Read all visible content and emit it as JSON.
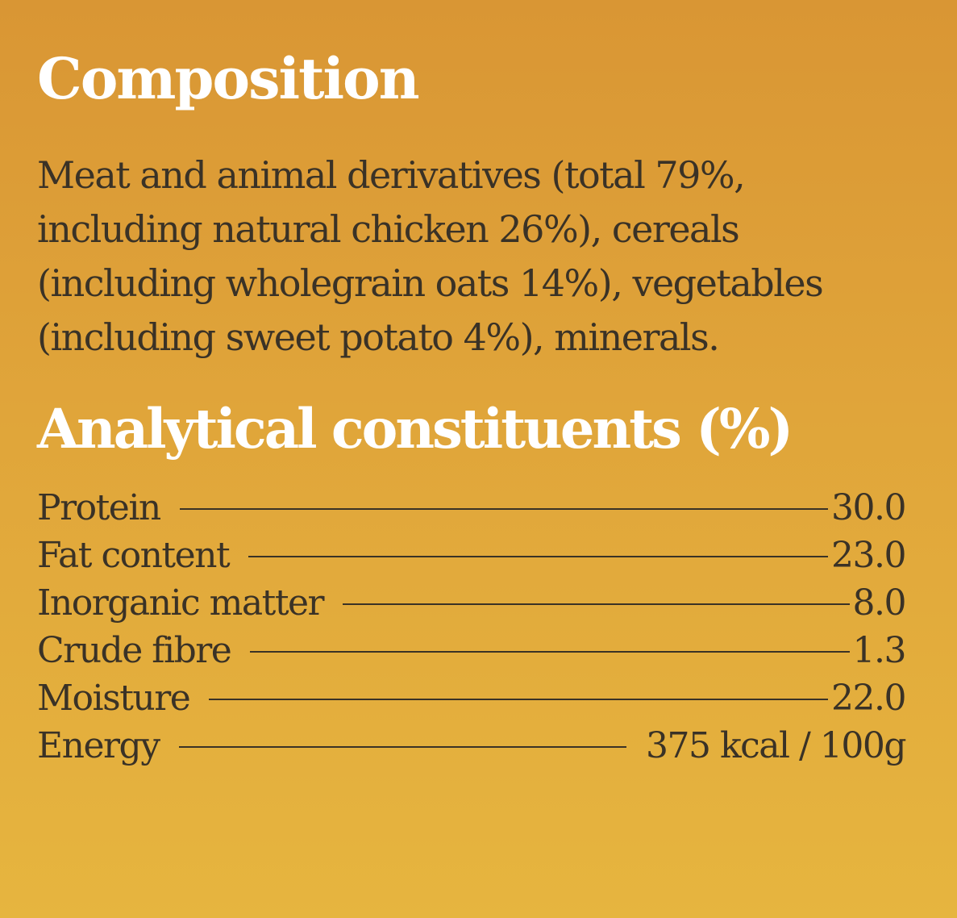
{
  "composition": {
    "heading": "Composition",
    "text": "Meat and animal derivatives (total 79%, including natural chicken 26%), cereals (including wholegrain oats 14%), vegetables (including sweet potato 4%), minerals."
  },
  "analytical": {
    "heading": "Analytical constituents (%)",
    "rows": [
      {
        "label": "Protein",
        "value": "30.0"
      },
      {
        "label": "Fat content",
        "value": "23.0"
      },
      {
        "label": "Inorganic matter",
        "value": "8.0"
      },
      {
        "label": "Crude fibre",
        "value": "1.3"
      },
      {
        "label": "Moisture",
        "value": "22.0"
      },
      {
        "label": "Energy",
        "value": "375 kcal / 100g"
      }
    ]
  },
  "colors": {
    "background_top": "#d99634",
    "background_bottom": "#e6b53f",
    "heading": "#ffffff",
    "body_text": "#3a3226"
  }
}
